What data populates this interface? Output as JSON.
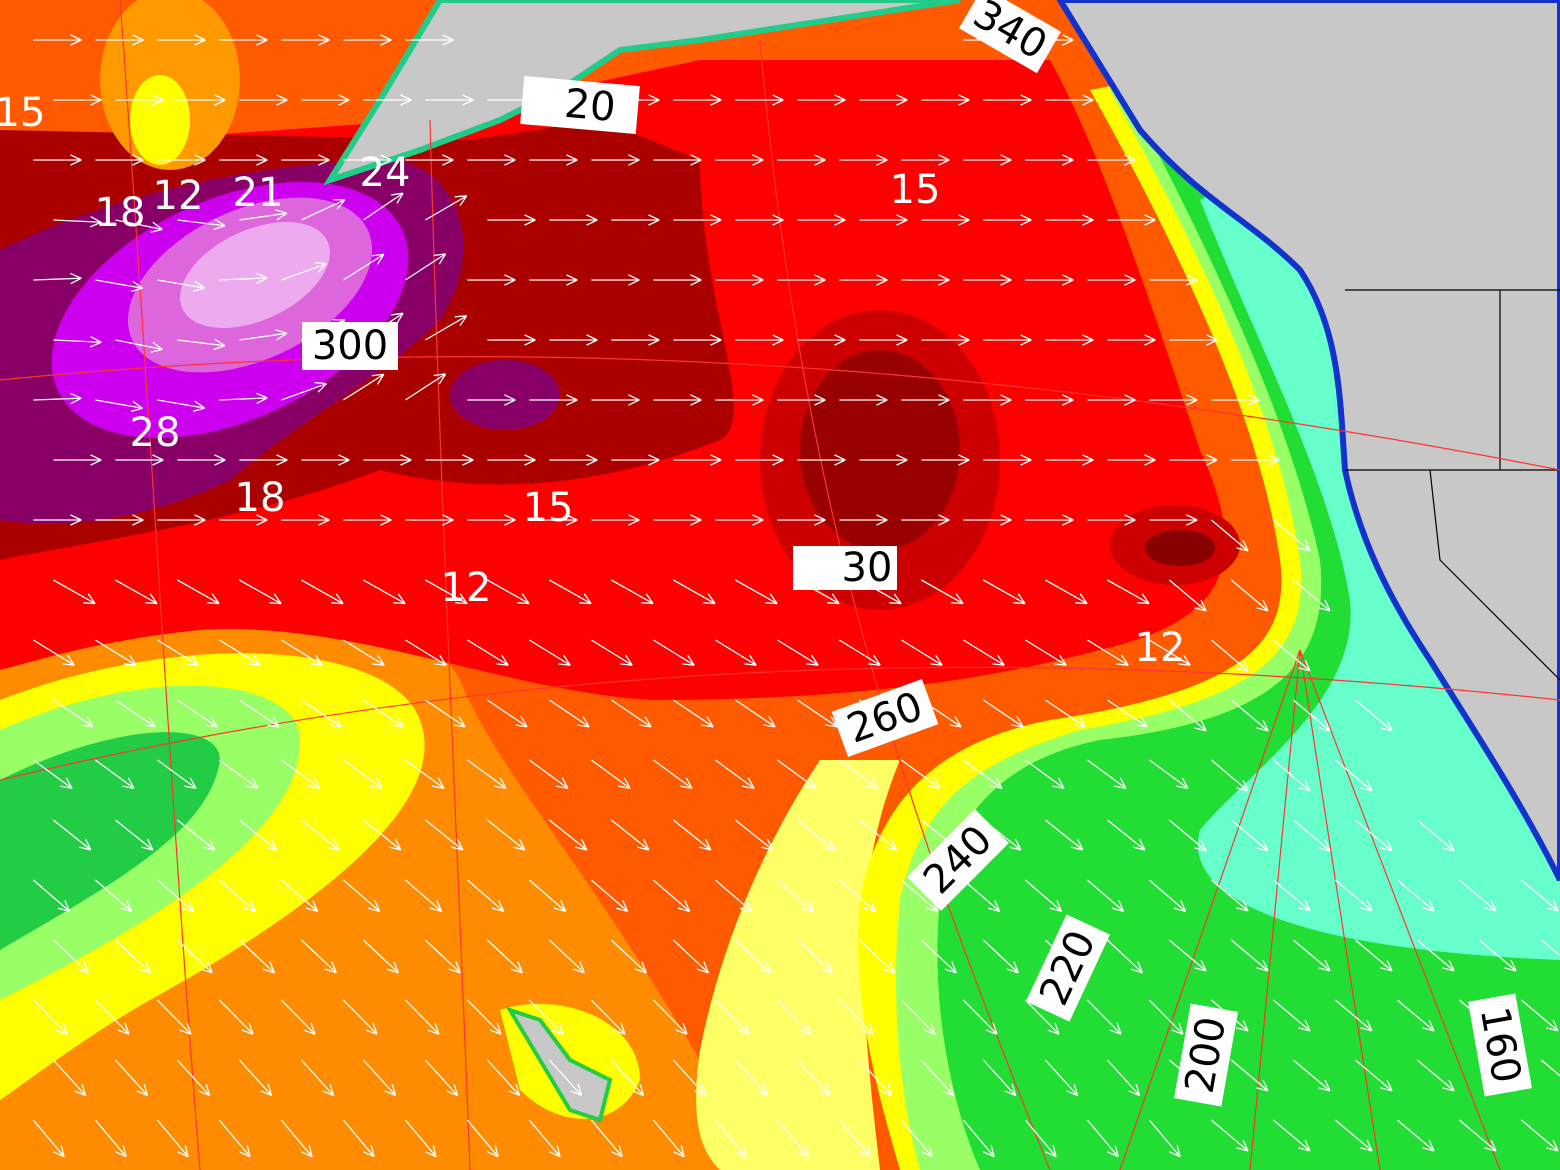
{
  "contour_labels": [
    "15",
    "18",
    "12",
    "21",
    "24",
    "28",
    "18",
    "15",
    "15",
    "12",
    "12"
  ],
  "boxed_labels": [
    "340",
    "20",
    "300",
    "30",
    "260",
    "240",
    "220",
    "200",
    "160"
  ]
}
